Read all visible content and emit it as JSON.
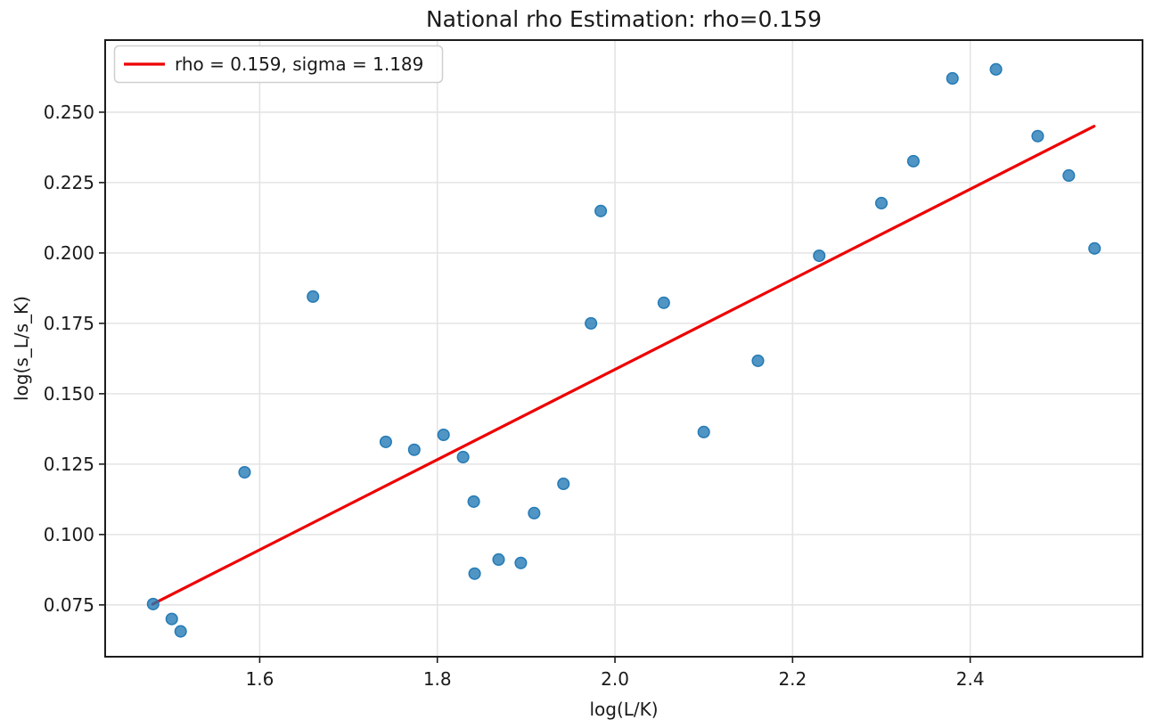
{
  "figure": {
    "background": "#ffffff"
  },
  "chart_data": {
    "type": "scatter",
    "title": "National rho Estimation: rho=0.159",
    "xlabel": "log(L/K)",
    "ylabel": "log(s_L/s_K)",
    "xlim": [
      1.426,
      2.594
    ],
    "ylim": [
      0.0566,
      0.2756
    ],
    "grid": true,
    "x_ticks": [
      1.6,
      1.8,
      2.0,
      2.2,
      2.4
    ],
    "x_tick_labels": [
      "1.6",
      "1.8",
      "2.0",
      "2.2",
      "2.4"
    ],
    "y_ticks": [
      0.075,
      0.1,
      0.125,
      0.15,
      0.175,
      0.2,
      0.225,
      0.25
    ],
    "y_tick_labels": [
      "0.075",
      "0.100",
      "0.125",
      "0.150",
      "0.175",
      "0.200",
      "0.225",
      "0.250"
    ],
    "legend": {
      "position": "upper-left",
      "entries": [
        {
          "label": "rho = 0.159, sigma = 1.189",
          "color": "#ee0000",
          "type": "line"
        }
      ]
    },
    "series": [
      {
        "name": "observations",
        "type": "scatter",
        "color": "#1f77b4",
        "alpha": 0.78,
        "points": [
          [
            1.48,
            0.0753
          ],
          [
            1.501,
            0.07
          ],
          [
            1.511,
            0.0656
          ],
          [
            1.583,
            0.1221
          ],
          [
            1.66,
            0.1845
          ],
          [
            1.742,
            0.1329
          ],
          [
            1.774,
            0.1301
          ],
          [
            1.807,
            0.1354
          ],
          [
            1.829,
            0.1275
          ],
          [
            1.841,
            0.1117
          ],
          [
            1.842,
            0.0861
          ],
          [
            1.869,
            0.0911
          ],
          [
            1.894,
            0.0899
          ],
          [
            1.909,
            0.1076
          ],
          [
            1.942,
            0.118
          ],
          [
            1.973,
            0.175
          ],
          [
            1.984,
            0.2149
          ],
          [
            2.055,
            0.1823
          ],
          [
            2.1,
            0.1364
          ],
          [
            2.161,
            0.1617
          ],
          [
            2.23,
            0.199
          ],
          [
            2.3,
            0.2177
          ],
          [
            2.336,
            0.2326
          ],
          [
            2.38,
            0.262
          ],
          [
            2.429,
            0.2652
          ],
          [
            2.476,
            0.2415
          ],
          [
            2.511,
            0.2275
          ],
          [
            2.54,
            0.2016
          ]
        ]
      },
      {
        "name": "fit-line",
        "type": "line",
        "color": "#ee0000",
        "x": [
          1.4796,
          2.5395
        ],
        "y": [
          0.0753,
          0.245
        ]
      }
    ]
  },
  "colors": {
    "scatter_fill": "#1f77b4",
    "scatter_edge": "#1f77b4",
    "line_red": "#ee0000",
    "grid": "#e4e4e4",
    "spine": "#1c1c1c",
    "text": "#1a1a1a",
    "legend_border": "#cfcfcf",
    "legend_bg": "rgba(255,255,255,0.9)"
  }
}
